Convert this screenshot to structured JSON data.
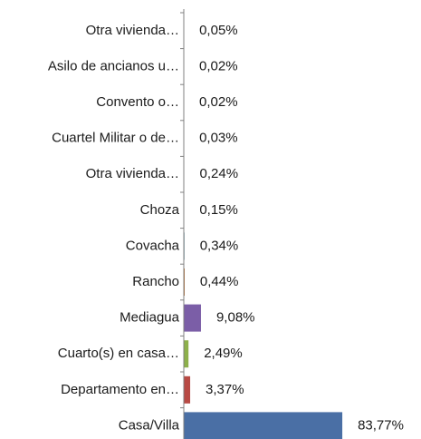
{
  "chart_data": {
    "type": "barh",
    "categories": [
      "Otra vivienda…",
      "Asilo de ancianos u…",
      "Convento o…",
      "Cuartel Militar o de…",
      "Otra vivienda…",
      "Choza",
      "Covacha",
      "Rancho",
      "Mediagua",
      "Cuarto(s) en casa…",
      "Departamento en…",
      "Casa/Villa"
    ],
    "values": [
      0.05,
      0.02,
      0.02,
      0.03,
      0.24,
      0.15,
      0.34,
      0.44,
      9.08,
      2.49,
      3.37,
      83.77
    ],
    "value_labels": [
      "0,05%",
      "0,02%",
      "0,02%",
      "0,03%",
      "0,24%",
      "0,15%",
      "0,34%",
      "0,44%",
      "9,08%",
      "2,49%",
      "3,37%",
      "83,77%"
    ],
    "colors": [
      "#4bacc6",
      "#f79646",
      "#2c4d75",
      "#772c2a",
      "#5f7530",
      "#4d3b62",
      "#276a7c",
      "#b65708",
      "#7b5ea7",
      "#8db04a",
      "#b84a44",
      "#4a6fa5"
    ],
    "xlim": [
      0,
      100
    ]
  }
}
